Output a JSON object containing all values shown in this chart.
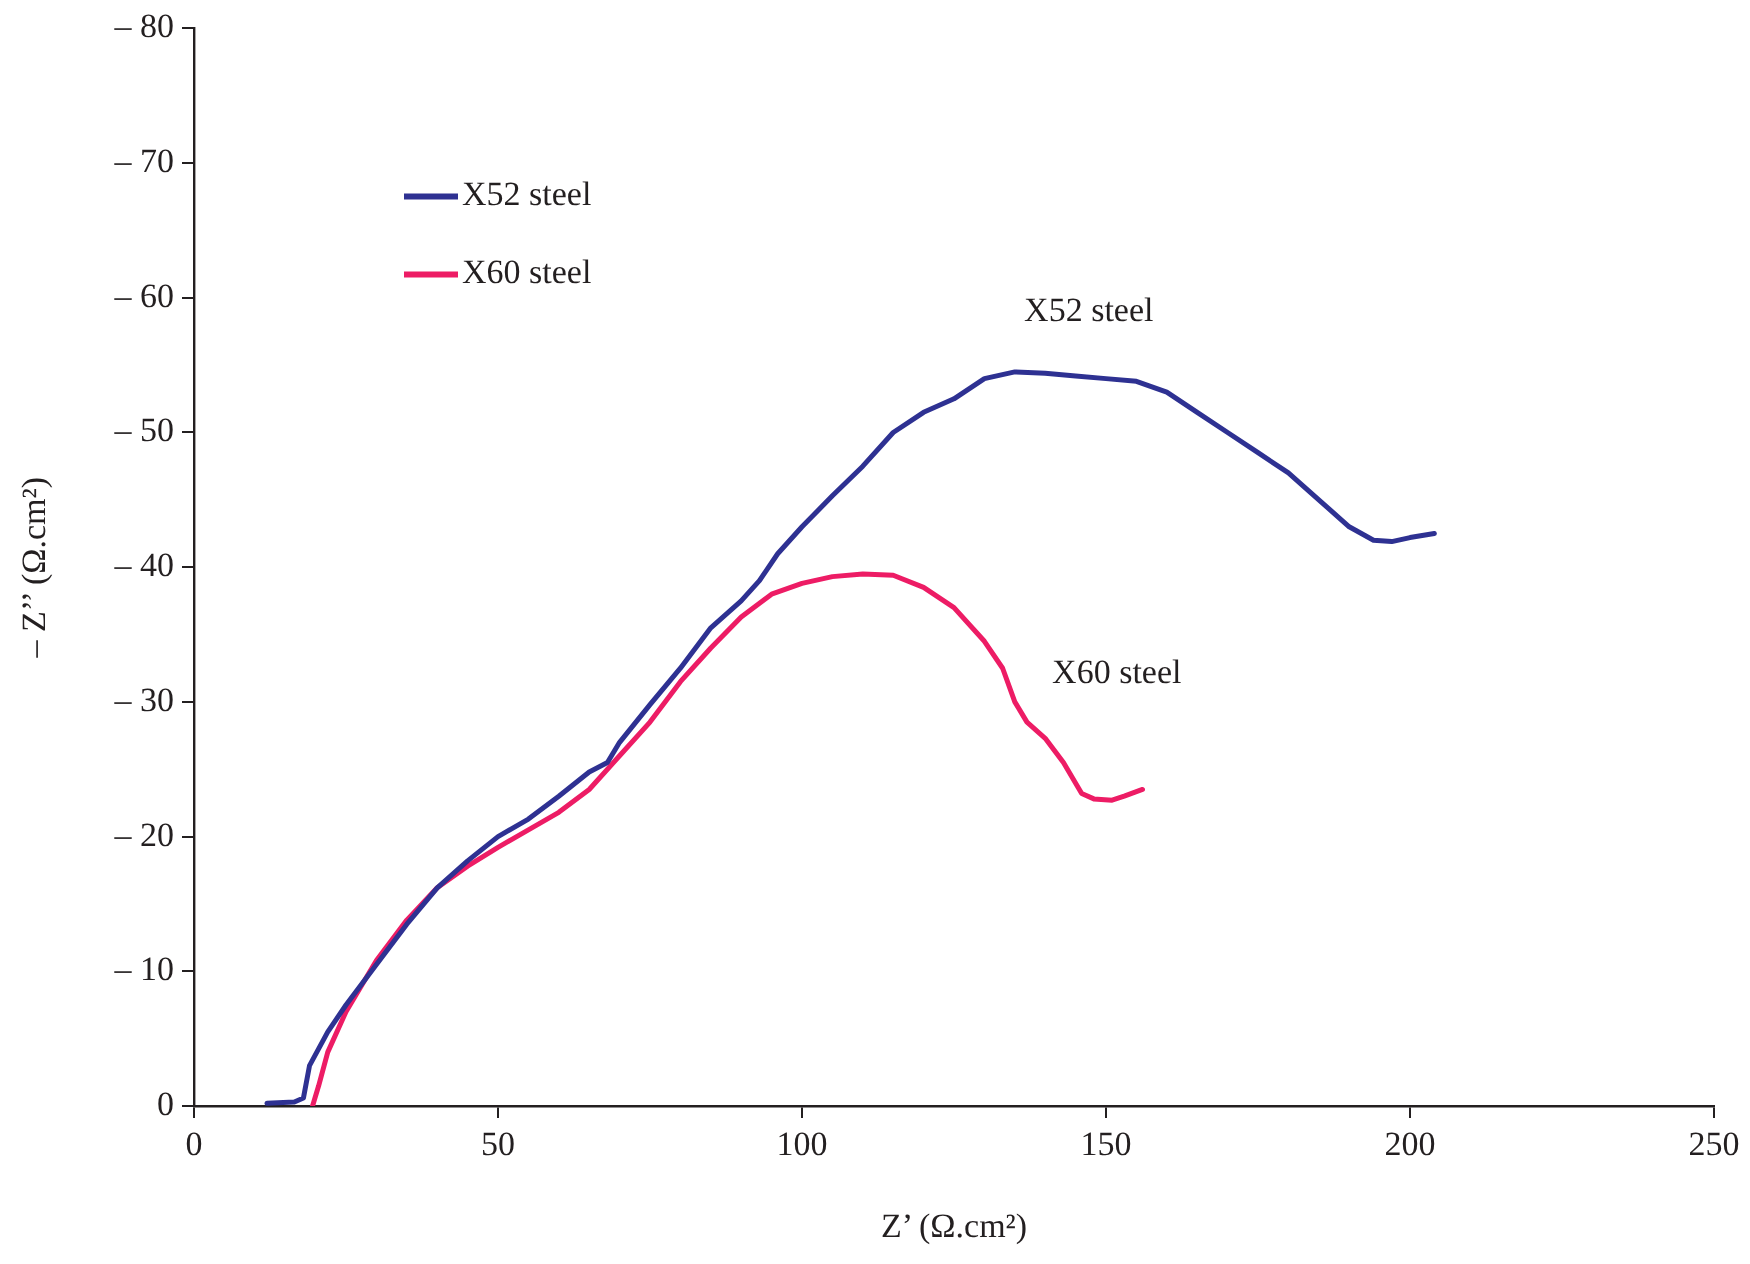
{
  "chart_data": {
    "type": "line",
    "xlabel": "Z’ (Ω.cm²)",
    "ylabel": "– Z’’ (Ω.cm²)",
    "xlim": [
      0,
      250
    ],
    "xticks": [
      0,
      50,
      100,
      150,
      200,
      250
    ],
    "ylim": [
      0,
      -80
    ],
    "yticks": [
      0,
      {
        "value": -10,
        "label": "– 10"
      },
      {
        "value": -20,
        "label": "– 20"
      },
      {
        "value": -30,
        "label": "– 30"
      },
      {
        "value": -40,
        "label": "– 40"
      },
      {
        "value": -50,
        "label": "– 50"
      },
      {
        "value": -60,
        "label": "– 60"
      },
      {
        "value": -70,
        "label": "– 70"
      },
      {
        "value": -80,
        "label": "– 80"
      }
    ],
    "grid": false,
    "legend": "top left",
    "marker": "none",
    "line_style": "solid",
    "series": [
      {
        "name": "X52 steel",
        "color": "#2e3192",
        "x": [
          12,
          16.5,
          18,
          19,
          22,
          25,
          30,
          35,
          40,
          45,
          50,
          55,
          60,
          65,
          68,
          70,
          75,
          80,
          85,
          90,
          93,
          96,
          100,
          105,
          110,
          115,
          120,
          125,
          130,
          135,
          140,
          145,
          150,
          155,
          160,
          165,
          170,
          175,
          180,
          185,
          190,
          194,
          197,
          200,
          204
        ],
        "values": [
          -0.2,
          -0.3,
          -0.6,
          -3,
          -5.5,
          -7.5,
          -10.5,
          -13.5,
          -16.2,
          -18.2,
          -20,
          -21.3,
          -23,
          -24.8,
          -25.5,
          -27,
          -29.8,
          -32.5,
          -35.5,
          -37.5,
          -39,
          -41,
          -43,
          -45.3,
          -47.5,
          -50,
          -51.5,
          -52.5,
          -54,
          -54.5,
          -54.4,
          -54.2,
          -54,
          -53.8,
          -53,
          -51.5,
          -50,
          -48.5,
          -47,
          -45,
          -43,
          -42,
          -41.9,
          -42.2,
          -42.5
        ]
      },
      {
        "name": "X60 steel",
        "color": "#ed1c65",
        "x": [
          19.5,
          20.5,
          22,
          25,
          30,
          35,
          40,
          45,
          50,
          55,
          60,
          65,
          70,
          75,
          80,
          85,
          90,
          95,
          100,
          105,
          110,
          115,
          120,
          125,
          130,
          133,
          135,
          137,
          140,
          143,
          146,
          148,
          151,
          153,
          156
        ],
        "values": [
          0,
          -1.5,
          -4,
          -7,
          -10.8,
          -13.8,
          -16.2,
          -17.8,
          -19.2,
          -20.5,
          -21.8,
          -23.5,
          -26,
          -28.5,
          -31.5,
          -34,
          -36.3,
          -38,
          -38.8,
          -39.3,
          -39.5,
          -39.4,
          -38.5,
          -37,
          -34.5,
          -32.5,
          -30,
          -28.5,
          -27.3,
          -25.5,
          -23.2,
          -22.8,
          -22.7,
          -23,
          -23.5
        ]
      }
    ],
    "annotations": [
      "X52 steel",
      "X60 steel"
    ]
  }
}
